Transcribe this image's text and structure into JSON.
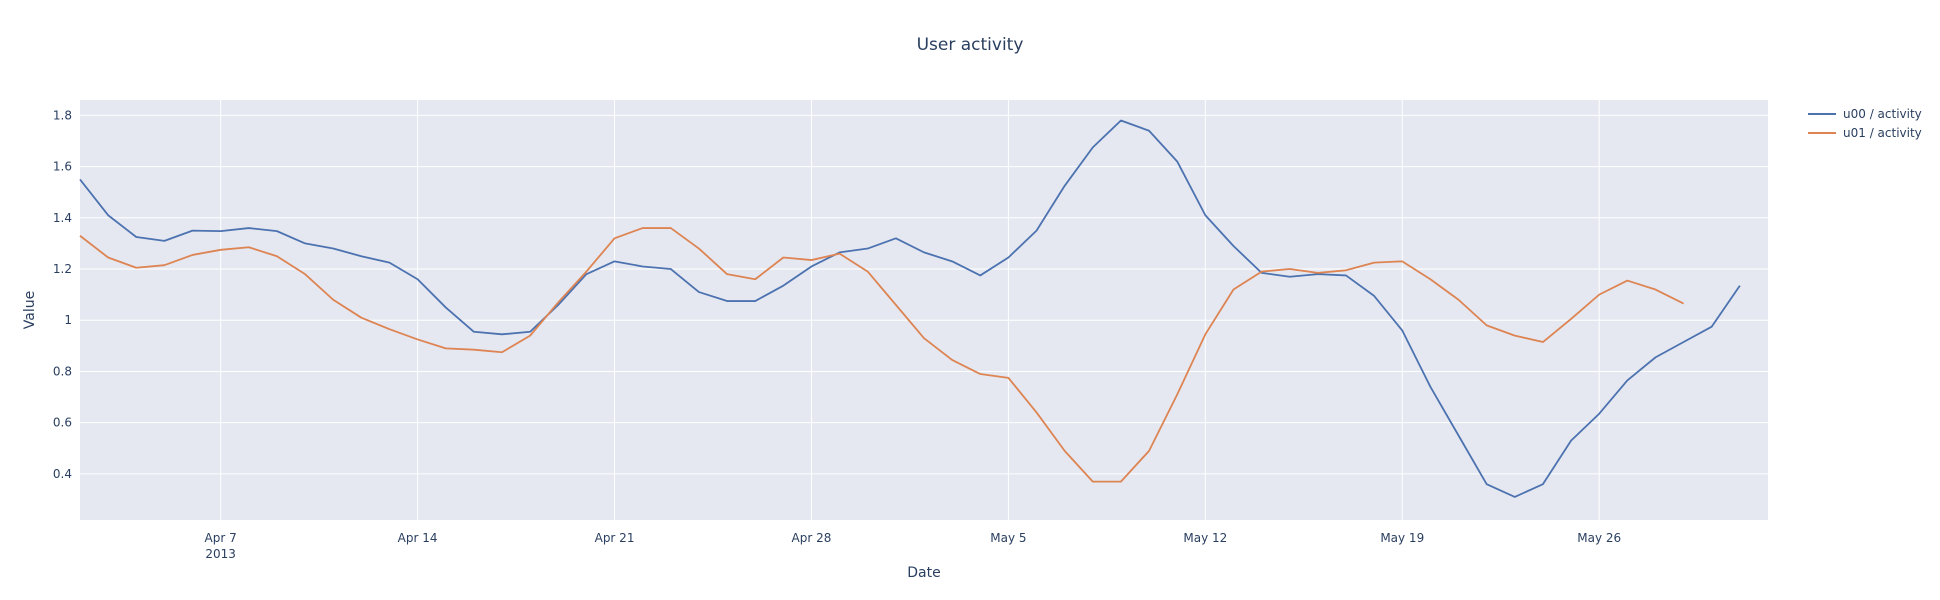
{
  "chart_data": {
    "type": "line",
    "title": "User activity",
    "xlabel": "Date",
    "ylabel": "Value",
    "start_date": "2013-04-02",
    "xlim": [
      "2013-04-02",
      "2013-06-01"
    ],
    "ylim": [
      0.22,
      1.86
    ],
    "x_ticks": [
      {
        "date": "2013-04-07",
        "label": "Apr 7",
        "sublabel": "2013"
      },
      {
        "date": "2013-04-14",
        "label": "Apr 14",
        "sublabel": ""
      },
      {
        "date": "2013-04-21",
        "label": "Apr 21",
        "sublabel": ""
      },
      {
        "date": "2013-04-28",
        "label": "Apr 28",
        "sublabel": ""
      },
      {
        "date": "2013-05-05",
        "label": "May 5",
        "sublabel": ""
      },
      {
        "date": "2013-05-12",
        "label": "May 12",
        "sublabel": ""
      },
      {
        "date": "2013-05-19",
        "label": "May 19",
        "sublabel": ""
      },
      {
        "date": "2013-05-26",
        "label": "May 26",
        "sublabel": ""
      }
    ],
    "y_ticks": [
      {
        "value": 0.4,
        "label": "0.4"
      },
      {
        "value": 0.6,
        "label": "0.6"
      },
      {
        "value": 0.8,
        "label": "0.8"
      },
      {
        "value": 1.0,
        "label": "1"
      },
      {
        "value": 1.2,
        "label": "1.2"
      },
      {
        "value": 1.4,
        "label": "1.4"
      },
      {
        "value": 1.6,
        "label": "1.6"
      },
      {
        "value": 1.8,
        "label": "1.8"
      }
    ],
    "grid": true,
    "legend_position": "top-right",
    "series": [
      {
        "name": "u00 / activity",
        "color": "#4c72b0",
        "values": [
          1.55,
          1.41,
          1.325,
          1.31,
          1.35,
          1.348,
          1.36,
          1.348,
          1.3,
          1.28,
          1.25,
          1.225,
          1.16,
          1.05,
          0.955,
          0.945,
          0.955,
          1.06,
          1.18,
          1.23,
          1.21,
          1.2,
          1.11,
          1.075,
          1.075,
          1.135,
          1.21,
          1.265,
          1.28,
          1.32,
          1.265,
          1.23,
          1.175,
          1.245,
          1.35,
          1.525,
          1.675,
          1.78,
          1.74,
          1.62,
          1.41,
          1.29,
          1.185,
          1.17,
          1.18,
          1.175,
          1.095,
          0.96,
          0.74,
          0.55,
          0.36,
          0.31,
          0.36,
          0.53,
          0.635,
          0.765,
          0.855,
          0.915,
          0.975,
          1.135
        ]
      },
      {
        "name": "u01 / activity",
        "color": "#dd8452",
        "values": [
          1.33,
          1.245,
          1.205,
          1.215,
          1.255,
          1.275,
          1.285,
          1.25,
          1.18,
          1.08,
          1.01,
          0.965,
          0.925,
          0.89,
          0.885,
          0.875,
          0.94,
          1.07,
          1.19,
          1.32,
          1.36,
          1.36,
          1.28,
          1.18,
          1.16,
          1.245,
          1.235,
          1.26,
          1.19,
          1.06,
          0.93,
          0.845,
          0.79,
          0.775,
          0.64,
          0.49,
          0.37,
          0.37,
          0.49,
          0.71,
          0.945,
          1.12,
          1.19,
          1.2,
          1.185,
          1.195,
          1.225,
          1.23,
          1.16,
          1.08,
          0.98,
          0.94,
          0.915,
          1.005,
          1.1,
          1.155,
          1.12,
          1.065
        ]
      }
    ]
  }
}
